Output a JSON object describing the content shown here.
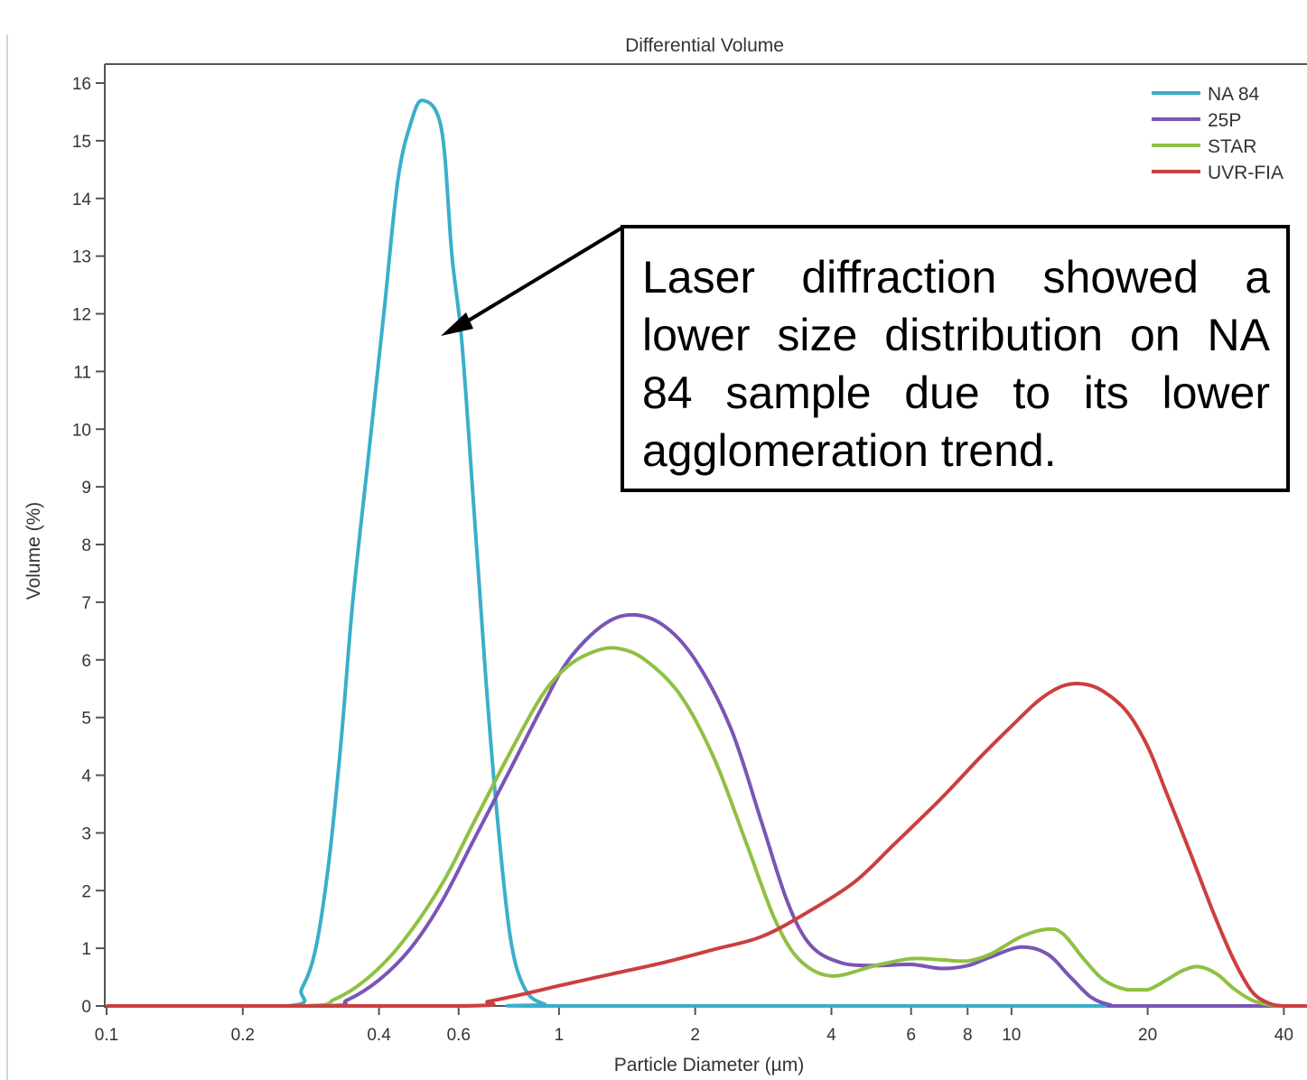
{
  "chart_data": {
    "type": "line",
    "title": "Differential Volume",
    "xlabel": "Particle Diameter (µm)",
    "ylabel": "Volume (%)",
    "x_scale": "log",
    "xlim": [
      0.1,
      45
    ],
    "ylim": [
      0,
      16
    ],
    "x_ticks": [
      {
        "value": 0.1,
        "label": "0.1"
      },
      {
        "value": 0.2,
        "label": "0.2"
      },
      {
        "value": 0.4,
        "label": "0.4"
      },
      {
        "value": 0.6,
        "label": "0.6"
      },
      {
        "value": 1,
        "label": "1"
      },
      {
        "value": 2,
        "label": "2"
      },
      {
        "value": 4,
        "label": "4"
      },
      {
        "value": 6,
        "label": "6"
      },
      {
        "value": 8,
        "label": "8"
      },
      {
        "value": 10,
        "label": "10"
      },
      {
        "value": 20,
        "label": "20"
      },
      {
        "value": 40,
        "label": "40"
      }
    ],
    "y_ticks": [
      0,
      1,
      2,
      3,
      4,
      5,
      6,
      7,
      8,
      9,
      10,
      11,
      12,
      13,
      14,
      15,
      16
    ],
    "grid": false,
    "legend_position": "top-right",
    "series": [
      {
        "name": "NA 84",
        "color": "#3aafc9",
        "points": [
          [
            0.1,
            0
          ],
          [
            0.25,
            0
          ],
          [
            0.27,
            0.3
          ],
          [
            0.29,
            1.0
          ],
          [
            0.31,
            2.5
          ],
          [
            0.33,
            4.6
          ],
          [
            0.35,
            7.0
          ],
          [
            0.38,
            9.6
          ],
          [
            0.41,
            12.0
          ],
          [
            0.44,
            14.3
          ],
          [
            0.47,
            15.3
          ],
          [
            0.5,
            15.7
          ],
          [
            0.55,
            15.2
          ],
          [
            0.58,
            13.0
          ],
          [
            0.61,
            11.5
          ],
          [
            0.65,
            8.5
          ],
          [
            0.69,
            5.6
          ],
          [
            0.73,
            3.3
          ],
          [
            0.78,
            1.2
          ],
          [
            0.84,
            0.3
          ],
          [
            0.93,
            0.03
          ],
          [
            1.05,
            0
          ],
          [
            45,
            0
          ]
        ]
      },
      {
        "name": "25P",
        "color": "#7a55b5",
        "points": [
          [
            0.1,
            0
          ],
          [
            0.3,
            0
          ],
          [
            0.34,
            0.1
          ],
          [
            0.4,
            0.45
          ],
          [
            0.47,
            1.0
          ],
          [
            0.55,
            1.8
          ],
          [
            0.65,
            2.9
          ],
          [
            0.78,
            4.1
          ],
          [
            0.92,
            5.2
          ],
          [
            1.05,
            6.0
          ],
          [
            1.25,
            6.6
          ],
          [
            1.45,
            6.78
          ],
          [
            1.7,
            6.6
          ],
          [
            2.0,
            6.0
          ],
          [
            2.4,
            4.8
          ],
          [
            2.8,
            3.2
          ],
          [
            3.2,
            1.8
          ],
          [
            3.6,
            1.05
          ],
          [
            4.2,
            0.75
          ],
          [
            5,
            0.7
          ],
          [
            6,
            0.72
          ],
          [
            7,
            0.65
          ],
          [
            8,
            0.7
          ],
          [
            9,
            0.85
          ],
          [
            10.5,
            1.02
          ],
          [
            12,
            0.9
          ],
          [
            13.5,
            0.5
          ],
          [
            15,
            0.15
          ],
          [
            16.5,
            0.02
          ],
          [
            18,
            0
          ],
          [
            45,
            0
          ]
        ]
      },
      {
        "name": "STAR",
        "color": "#8fc043",
        "points": [
          [
            0.1,
            0
          ],
          [
            0.27,
            0
          ],
          [
            0.32,
            0.12
          ],
          [
            0.38,
            0.5
          ],
          [
            0.45,
            1.1
          ],
          [
            0.55,
            2.1
          ],
          [
            0.65,
            3.2
          ],
          [
            0.78,
            4.4
          ],
          [
            0.92,
            5.4
          ],
          [
            1.05,
            5.9
          ],
          [
            1.2,
            6.15
          ],
          [
            1.35,
            6.2
          ],
          [
            1.55,
            6.0
          ],
          [
            1.85,
            5.4
          ],
          [
            2.2,
            4.3
          ],
          [
            2.6,
            2.8
          ],
          [
            3.0,
            1.5
          ],
          [
            3.4,
            0.8
          ],
          [
            4.0,
            0.52
          ],
          [
            5,
            0.7
          ],
          [
            6,
            0.82
          ],
          [
            7,
            0.8
          ],
          [
            8,
            0.78
          ],
          [
            9,
            0.9
          ],
          [
            10.5,
            1.2
          ],
          [
            12,
            1.33
          ],
          [
            13,
            1.25
          ],
          [
            14.5,
            0.8
          ],
          [
            16,
            0.45
          ],
          [
            18,
            0.28
          ],
          [
            20,
            0.28
          ],
          [
            22,
            0.45
          ],
          [
            24,
            0.62
          ],
          [
            26,
            0.68
          ],
          [
            28.5,
            0.55
          ],
          [
            31,
            0.3
          ],
          [
            34,
            0.1
          ],
          [
            37,
            0.02
          ],
          [
            40,
            0
          ],
          [
            45,
            0
          ]
        ]
      },
      {
        "name": "UVR-FIA",
        "color": "#cc3f3f",
        "points": [
          [
            0.1,
            0
          ],
          [
            0.6,
            0
          ],
          [
            0.7,
            0.08
          ],
          [
            0.85,
            0.22
          ],
          [
            1.0,
            0.35
          ],
          [
            1.3,
            0.55
          ],
          [
            1.7,
            0.75
          ],
          [
            2.2,
            0.98
          ],
          [
            2.8,
            1.2
          ],
          [
            3.5,
            1.6
          ],
          [
            4.5,
            2.15
          ],
          [
            5.5,
            2.8
          ],
          [
            7,
            3.6
          ],
          [
            8.5,
            4.3
          ],
          [
            10,
            4.85
          ],
          [
            11.5,
            5.3
          ],
          [
            13,
            5.55
          ],
          [
            14.5,
            5.58
          ],
          [
            16,
            5.45
          ],
          [
            18,
            5.1
          ],
          [
            20,
            4.5
          ],
          [
            22,
            3.7
          ],
          [
            25,
            2.6
          ],
          [
            28,
            1.6
          ],
          [
            31,
            0.8
          ],
          [
            34,
            0.25
          ],
          [
            37,
            0.05
          ],
          [
            40,
            0
          ],
          [
            45,
            0
          ]
        ]
      }
    ]
  },
  "annotation": {
    "text": "Laser diffraction showed a lower size distribution on NA 84 sample due to its lower agglomeration trend."
  }
}
